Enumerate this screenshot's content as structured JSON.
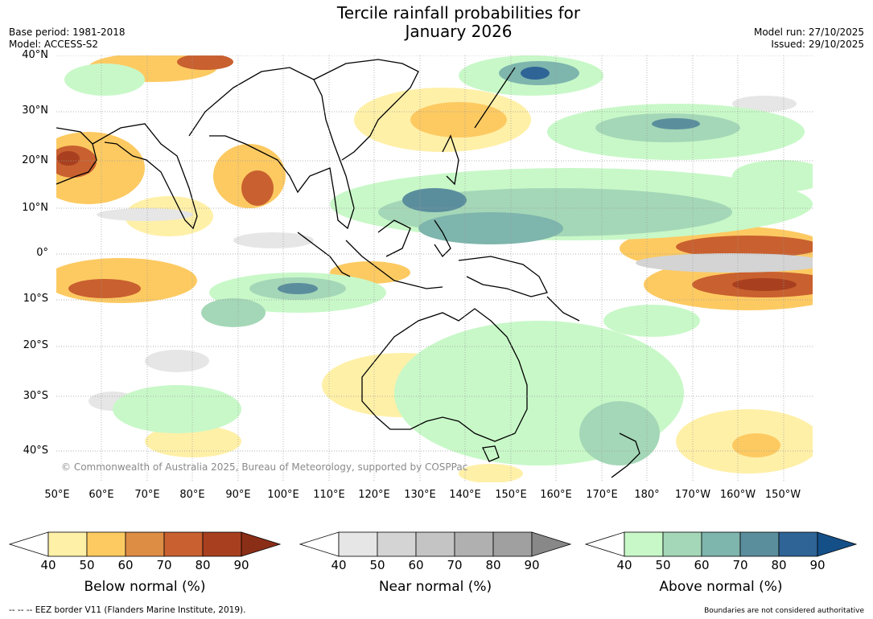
{
  "header": {
    "title_line1": "Tercile rainfall probabilities for",
    "title_line2": "January 2026",
    "base_period": "Base period: 1981-2018",
    "model": "Model: ACCESS-S2",
    "model_run": "Model run: 27/10/2025",
    "issued": "Issued: 29/10/2025"
  },
  "map": {
    "lat_labels": [
      "40°N",
      "30°N",
      "20°N",
      "10°N",
      "0°",
      "10°S",
      "20°S",
      "30°S",
      "40°S"
    ],
    "lon_labels": [
      "50°E",
      "60°E",
      "70°E",
      "80°E",
      "90°E",
      "100°E",
      "110°E",
      "120°E",
      "130°E",
      "140°E",
      "150°E",
      "160°E",
      "170°E",
      "180°",
      "170°W",
      "160°W",
      "150°W"
    ],
    "copyright": "© Commonwealth of Australia 2025, Bureau of Meteorology, supported by COSPPac",
    "colors": {
      "below": [
        "#fff0a8",
        "#fdca62",
        "#de8d45",
        "#c9602f",
        "#a84020",
        "#8b2e18"
      ],
      "near": [
        "#e6e6e6",
        "#d4d4d4",
        "#c4c4c4",
        "#b0b0b0",
        "#a0a0a0",
        "#888888"
      ],
      "above": [
        "#c8f8c8",
        "#a4d7b7",
        "#7eb5ad",
        "#5b8e9d",
        "#2e6496",
        "#154f88"
      ]
    }
  },
  "colorbars": [
    {
      "title": "Below normal (%)",
      "ticks": [
        "40",
        "50",
        "60",
        "70",
        "80",
        "90"
      ]
    },
    {
      "title": "Near normal (%)",
      "ticks": [
        "40",
        "50",
        "60",
        "70",
        "80",
        "90"
      ]
    },
    {
      "title": "Above normal (%)",
      "ticks": [
        "40",
        "50",
        "60",
        "70",
        "80",
        "90"
      ]
    }
  ],
  "footer": {
    "eez_note": "--  --  -- EEZ border V11 (Flanders Marine Institute, 2019).",
    "boundaries_note": "Boundaries are not considered authoritative"
  }
}
